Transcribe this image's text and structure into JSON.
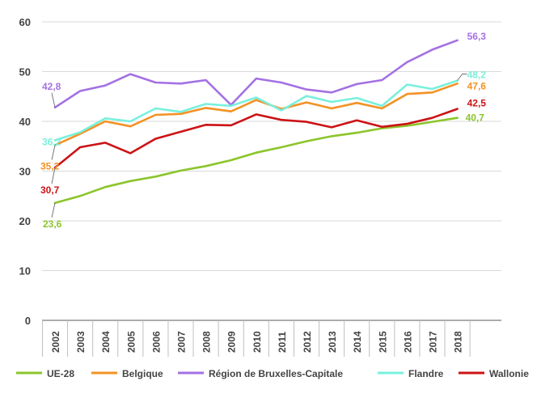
{
  "chart_data": {
    "type": "line",
    "title": "",
    "xlabel": "",
    "ylabel": "",
    "ylim": [
      0,
      60
    ],
    "yticks": [
      "0",
      "10",
      "20",
      "30",
      "40",
      "50",
      "60"
    ],
    "categories": [
      "2002",
      "2003",
      "2004",
      "2005",
      "2006",
      "2007",
      "2008",
      "2009",
      "2010",
      "2011",
      "2012",
      "2013",
      "2014",
      "2015",
      "2016",
      "2017",
      "2018"
    ],
    "grid": "horizontal",
    "legend_position": "bottom",
    "series": [
      {
        "name": "UE-28",
        "color": "#8bc52b",
        "values": [
          23.6,
          25.0,
          26.8,
          28.0,
          28.9,
          30.1,
          31.0,
          32.2,
          33.7,
          34.8,
          36.0,
          37.0,
          37.7,
          38.6,
          39.1,
          39.9,
          40.7
        ]
      },
      {
        "name": "Belgique",
        "color": "#f39224",
        "values": [
          35.2,
          37.5,
          40.0,
          39.0,
          41.3,
          41.5,
          42.7,
          42.0,
          44.3,
          42.5,
          43.8,
          42.6,
          43.7,
          42.6,
          45.5,
          45.8,
          47.6
        ]
      },
      {
        "name": "Région de Bruxelles-Capitale",
        "color": "#a371e3",
        "values": [
          42.8,
          46.1,
          47.2,
          49.5,
          47.8,
          47.6,
          48.3,
          43.3,
          48.6,
          47.8,
          46.4,
          45.8,
          47.5,
          48.3,
          51.9,
          54.4,
          56.3
        ]
      },
      {
        "name": "Flandre",
        "color": "#79f0dc",
        "values": [
          36.2,
          37.8,
          40.6,
          40.0,
          42.6,
          41.9,
          43.5,
          43.1,
          44.8,
          42.2,
          45.1,
          43.9,
          44.7,
          43.1,
          47.4,
          46.5,
          48.2
        ]
      },
      {
        "name": "Wallonie",
        "color": "#cc1316",
        "values": [
          30.7,
          34.8,
          35.7,
          33.6,
          36.5,
          37.9,
          39.3,
          39.2,
          41.4,
          40.3,
          39.9,
          38.8,
          40.2,
          38.9,
          39.5,
          40.7,
          42.5
        ]
      }
    ],
    "data_labels": [
      {
        "series": 0,
        "index": 0,
        "text": "23,6"
      },
      {
        "series": 0,
        "index": 16,
        "text": "40,7"
      },
      {
        "series": 1,
        "index": 0,
        "text": "35,2"
      },
      {
        "series": 1,
        "index": 16,
        "text": "47,6"
      },
      {
        "series": 2,
        "index": 0,
        "text": "42,8"
      },
      {
        "series": 2,
        "index": 16,
        "text": "56,3"
      },
      {
        "series": 3,
        "index": 0,
        "text": "36,2"
      },
      {
        "series": 3,
        "index": 16,
        "text": "48,2"
      },
      {
        "series": 4,
        "index": 0,
        "text": "30,7"
      },
      {
        "series": 4,
        "index": 16,
        "text": "42,5"
      }
    ]
  }
}
